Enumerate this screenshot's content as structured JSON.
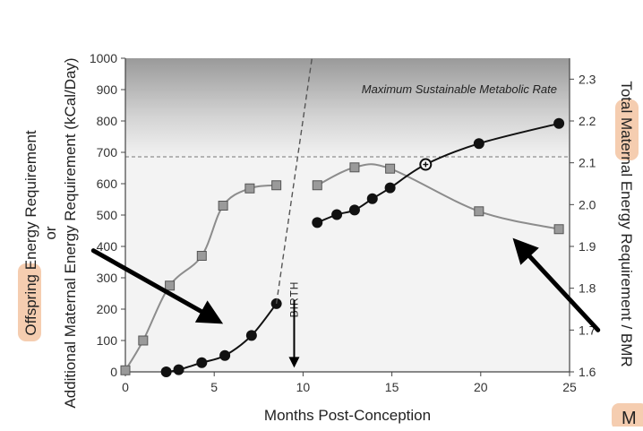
{
  "chart_data": {
    "type": "line",
    "title": "",
    "xlabel": "Months Post-Conception",
    "ylabel": "Offspring Energy Requirement or Additional Maternal Energy Requirement (kCal/Day)",
    "ylabel_lines": [
      "Offspring Energy Requirement",
      "or",
      "Additional Maternal Energy Requirement (kCal/Day)"
    ],
    "y2label": "Total Maternal Energy Requirement / BMR",
    "xlim": [
      0,
      25
    ],
    "ylim": [
      0,
      1000
    ],
    "y2lim": [
      1.6,
      2.35
    ],
    "x_ticks": [
      "0",
      "5",
      "10",
      "15",
      "20",
      "25"
    ],
    "y_ticks": [
      "0",
      "100",
      "200",
      "300",
      "400",
      "500",
      "600",
      "700",
      "800",
      "900",
      "1000"
    ],
    "y2_ticks": [
      "1.6",
      "1.7",
      "1.8",
      "1.9",
      "2.0",
      "2.1",
      "2.2",
      "2.3"
    ],
    "grid": false,
    "shaded_region_label": "Maximum Sustainable Metabolic Rate",
    "threshold_y2": 2.09,
    "birth_label": "BIRTH",
    "birth_x": 9.5,
    "highlighted_words": [
      "Offspring",
      "Maternal"
    ],
    "corner_fragment": "M",
    "series": [
      {
        "marker": "square",
        "color": "#8c8c8c",
        "axis": "left",
        "segments": [
          [
            [
              0,
              5
            ],
            [
              1,
              100
            ],
            [
              2.5,
              275
            ],
            [
              4.3,
              370
            ],
            [
              5.5,
              530
            ],
            [
              7,
              585
            ],
            [
              8.5,
              595
            ]
          ],
          [
            [
              10.8,
              595
            ],
            [
              12.9,
              652
            ],
            [
              14.9,
              648
            ],
            [
              19.9,
              512
            ],
            [
              24.4,
              455
            ]
          ]
        ]
      },
      {
        "marker": "circle",
        "color": "#111111",
        "axis": "right",
        "segments": [
          [
            [
              2.3,
              1.6
            ],
            [
              3,
              1.605
            ],
            [
              4.3,
              1.622
            ],
            [
              5.6,
              1.639
            ],
            [
              7.1,
              1.687
            ],
            [
              8.5,
              1.763
            ]
          ],
          [
            [
              10.8,
              1.957
            ],
            [
              11.9,
              1.976
            ],
            [
              12.9,
              1.987
            ],
            [
              13.9,
              2.014
            ],
            [
              14.9,
              2.04
            ],
            [
              16.9,
              2.096
            ],
            [
              19.9,
              2.146
            ],
            [
              24.4,
              2.194
            ]
          ]
        ],
        "open_marker_point": [
          16.9,
          2.096
        ]
      },
      {
        "style": "dashed",
        "color": "#555555",
        "axis": "right",
        "points": [
          [
            8.5,
            1.763
          ],
          [
            10.5,
            2.35
          ]
        ]
      }
    ],
    "annotations": [
      {
        "type": "arrow",
        "color": "#000000",
        "from": [
          -1.8,
          1.89
        ],
        "to": [
          5.5,
          1.715
        ]
      },
      {
        "type": "arrow",
        "color": "#000000",
        "from": [
          26.6,
          1.7
        ],
        "to": [
          21.8,
          1.92
        ]
      },
      {
        "type": "arrow",
        "color": "#000000",
        "from": [
          9.5,
          1.77
        ],
        "to": [
          9.5,
          1.61
        ],
        "label": "BIRTH"
      }
    ]
  }
}
